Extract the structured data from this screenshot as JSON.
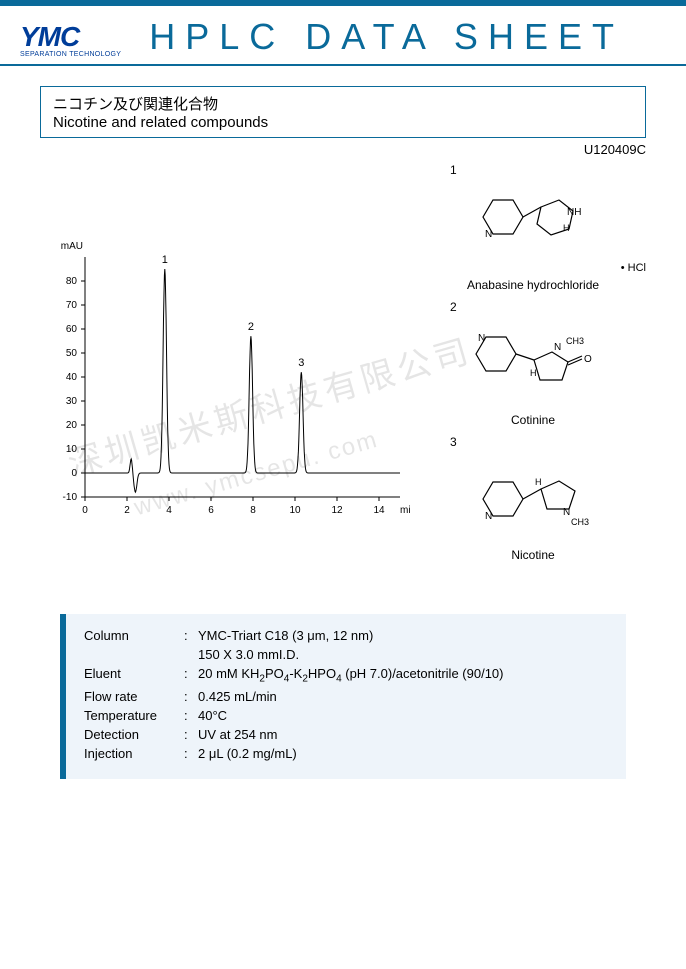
{
  "header": {
    "logo_main": "YMC",
    "logo_sub": "SEPARATION TECHNOLOGY",
    "title": "HPLC DATA SHEET"
  },
  "titlebox": {
    "jp": "ニコチン及び関連化合物",
    "en": "Nicotine and related compounds"
  },
  "code": "U120409C",
  "chart": {
    "ylabel": "mAU",
    "xlabel": "min",
    "xlim": [
      0,
      15
    ],
    "ylim": [
      -10,
      90
    ],
    "yticks": [
      -10,
      0,
      10,
      20,
      30,
      40,
      50,
      60,
      70,
      80
    ],
    "xticks": [
      0,
      2,
      4,
      6,
      8,
      10,
      12,
      14
    ],
    "peaks": [
      {
        "label": "1",
        "rt": 3.8,
        "height": 85
      },
      {
        "label": "2",
        "rt": 7.9,
        "height": 57
      },
      {
        "label": "3",
        "rt": 10.3,
        "height": 42
      }
    ],
    "solvent_front_rt": 2.3,
    "line_color": "#000000",
    "axis_color": "#000000",
    "label_fontsize": 10
  },
  "structures": [
    {
      "num": "1",
      "name": "Anabasine hydrochloride",
      "salt": "• HCl"
    },
    {
      "num": "2",
      "name": "Cotinine",
      "salt": ""
    },
    {
      "num": "3",
      "name": "Nicotine",
      "salt": ""
    }
  ],
  "conditions": {
    "rows": [
      {
        "label": "Column",
        "value_html": "YMC-Triart C18 (3 μm, 12 nm)"
      },
      {
        "label": "",
        "value_html": "150 X 3.0 mmI.D."
      },
      {
        "label": "Eluent",
        "value_html": "20 mM KH<sub>2</sub>PO<sub>4</sub>-K<sub>2</sub>HPO<sub>4</sub> (pH 7.0)/acetonitrile (90/10)"
      },
      {
        "label": "Flow rate",
        "value_html": "0.425 mL/min"
      },
      {
        "label": "Temperature",
        "value_html": "40°C"
      },
      {
        "label": "Detection",
        "value_html": "UV at 254 nm"
      },
      {
        "label": "Injection",
        "value_html": "2 μL (0.2 mg/mL)"
      }
    ]
  },
  "watermark": {
    "line1": "深圳凯米斯科技有限公司",
    "line2": "www. ymcsepu. com"
  },
  "colors": {
    "brand_blue": "#0a6a9a",
    "logo_blue": "#003d99",
    "cond_bg": "#eef4fa"
  }
}
